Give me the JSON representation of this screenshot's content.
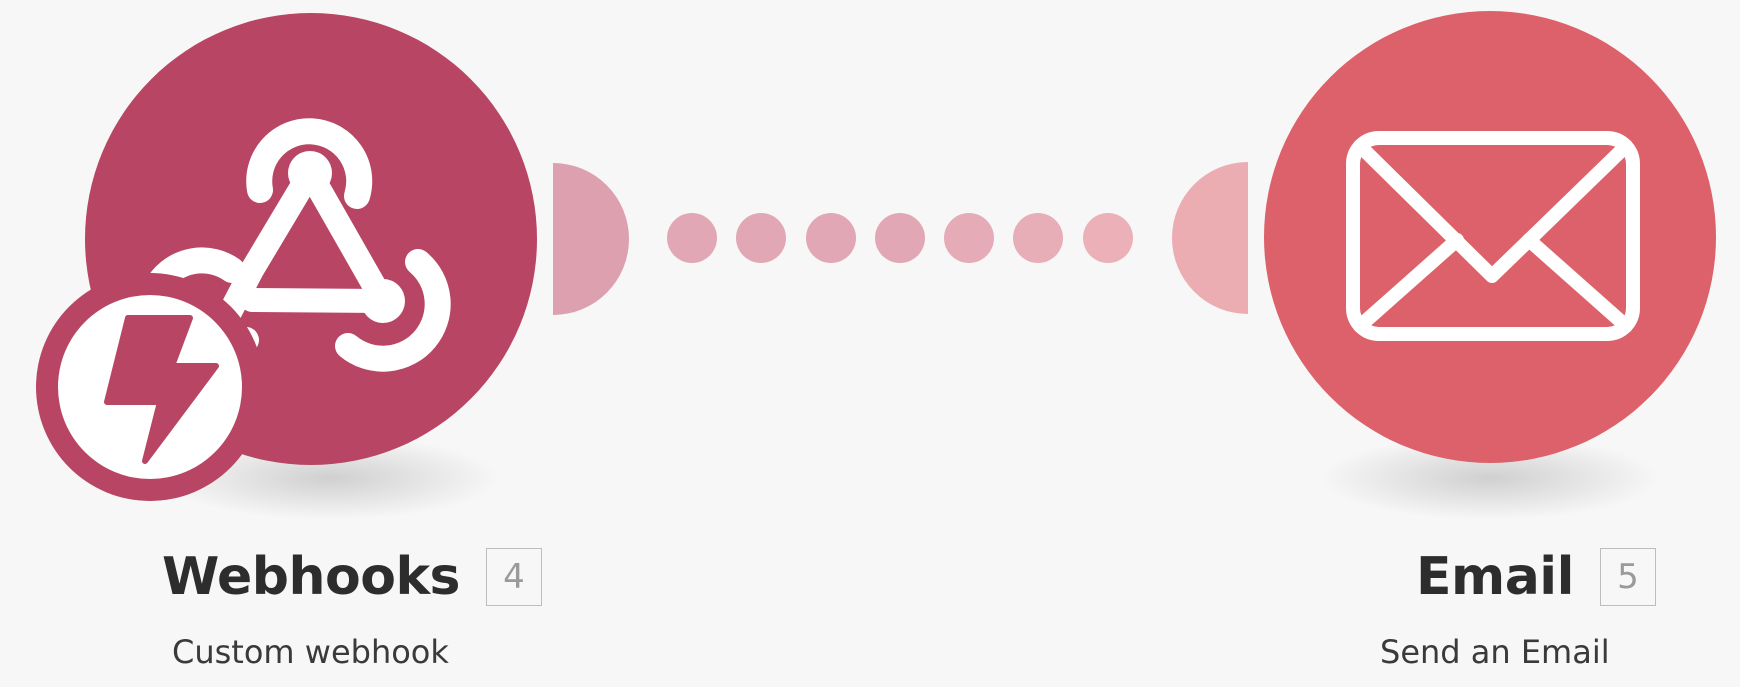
{
  "modules": [
    {
      "id": 4,
      "app": "Webhooks",
      "action": "Custom webhook",
      "badge": "4",
      "color": "#b84563",
      "icon": "webhook-icon",
      "trigger_icon": "lightning-bolt-icon"
    },
    {
      "id": 5,
      "app": "Email",
      "action": "Send an Email",
      "badge": "5",
      "color": "#dd616b",
      "icon": "envelope-icon"
    }
  ],
  "connector": {
    "dots": 7,
    "color": "#e2a7b5"
  }
}
